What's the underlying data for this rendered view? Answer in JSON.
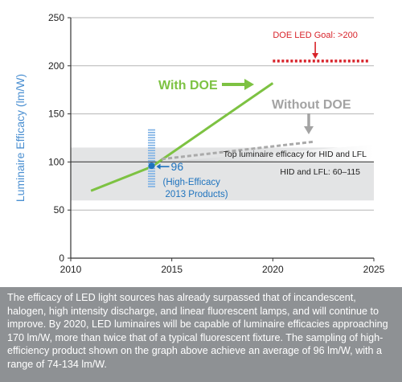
{
  "chart_data": {
    "type": "line",
    "ylabel": "Luminaire Efficacy (lm/W)",
    "xlim": [
      2010,
      2025
    ],
    "ylim": [
      0,
      250
    ],
    "x_ticks": [
      "2010",
      "2015",
      "2020",
      "2025"
    ],
    "y_ticks": [
      "0",
      "50",
      "100",
      "150",
      "200",
      "250"
    ],
    "grid": "horizontal",
    "series": [
      {
        "name": "With DOE",
        "color": "#7dc242",
        "points": [
          [
            2011,
            70
          ],
          [
            2014,
            95
          ],
          [
            2020,
            182
          ]
        ]
      },
      {
        "name": "Without DOE",
        "color": "#aaaaaa",
        "points": [
          [
            2014.5,
            103
          ],
          [
            2022,
            121
          ]
        ]
      }
    ],
    "band": {
      "label": "HID and LFL: 60–115",
      "from": 60,
      "to": 115,
      "color": "#e3e4e5"
    },
    "top_line": {
      "label": "Top luminaire efficacy for HID and LFL",
      "y": 100
    },
    "goal": {
      "label": "DOE LED Goal: >200",
      "y": 205,
      "x_from": 2020,
      "x_to": 2025,
      "color": "#d8232a"
    },
    "sample": {
      "x": 2014,
      "mean": 96,
      "min": 74,
      "max": 134,
      "value_label": "96",
      "desc_line1": "(High-Efficacy",
      "desc_line2": "2013 Products)",
      "color": "#1e73be",
      "bar_color": "#7fb2e5"
    },
    "annotations": {
      "with_doe": "With DOE",
      "without_doe": "Without DOE"
    }
  },
  "caption": "The efficacy of LED light sources has already surpassed that of incandescent, halogen, high intensity discharge, and linear fluorescent lamps, and will continue to improve. By 2020, LED luminaires will be capable of luminaire efficacies approaching 170 lm/W, more than twice that of a typical fluorescent fixture. The sampling of high-efficiency product shown on the graph above achieve an average of 96 lm/W, with a range of 74-134 lm/W."
}
